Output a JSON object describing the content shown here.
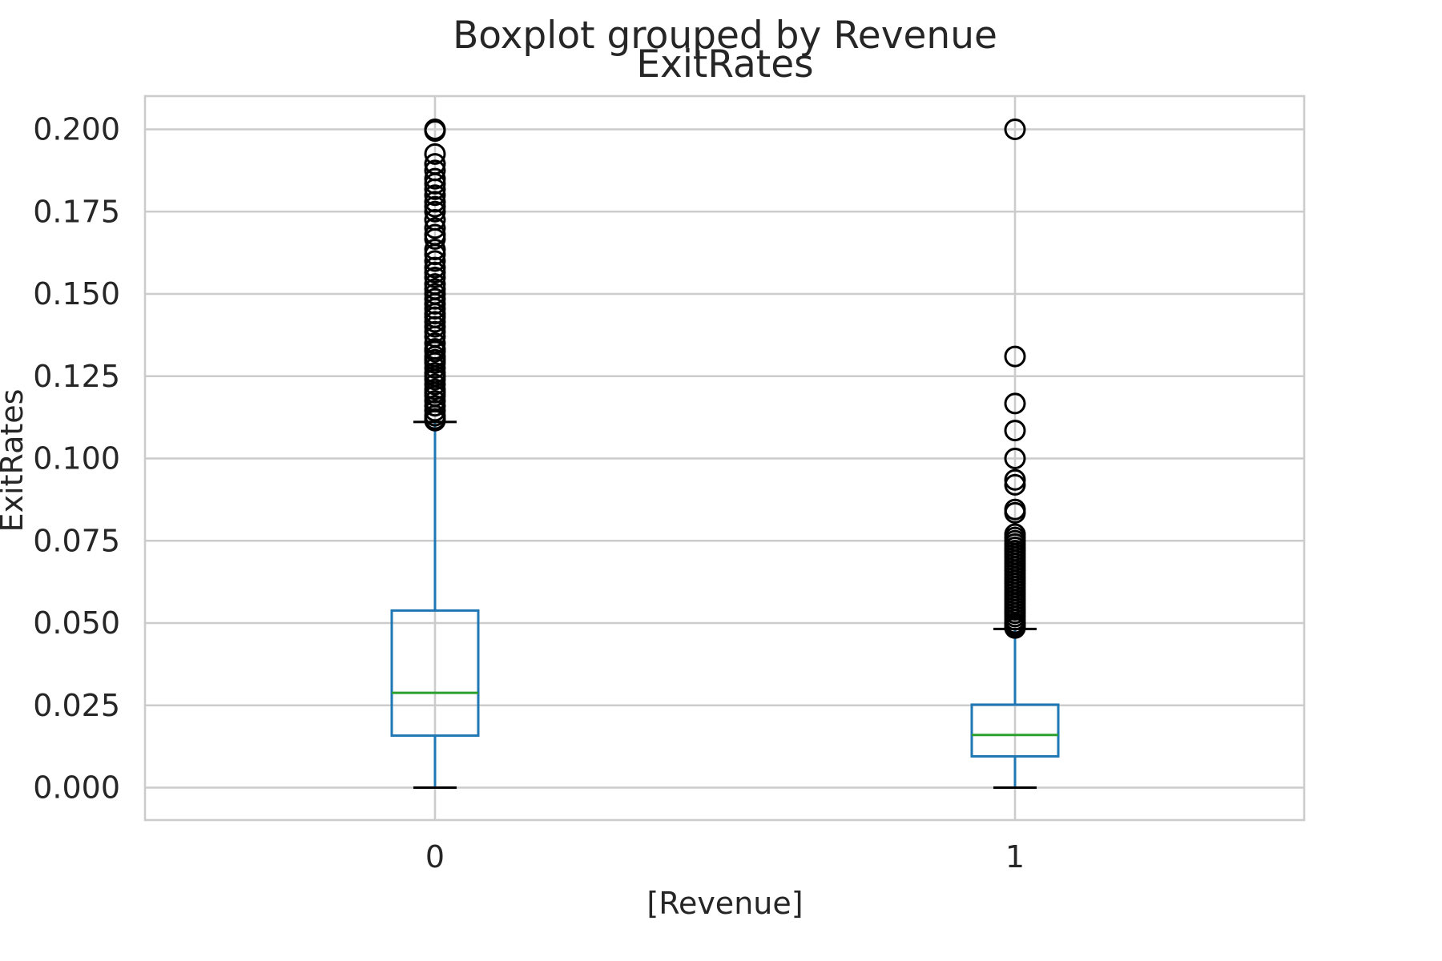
{
  "chart_data": {
    "type": "box",
    "suptitle": "Boxplot grouped by Revenue",
    "title": "ExitRates",
    "xlabel": "[Revenue]",
    "ylabel": "ExitRates",
    "categories": [
      "0",
      "1"
    ],
    "ylim": [
      -0.01,
      0.21
    ],
    "yticks": [
      "0.000",
      "0.025",
      "0.050",
      "0.075",
      "0.100",
      "0.125",
      "0.150",
      "0.175",
      "0.200"
    ],
    "grid": true,
    "colors": {
      "box": "#1f77b4",
      "median": "#2ca02c",
      "whisker_cap": "#000000",
      "flier": "#000000",
      "grid": "#cccccc"
    },
    "boxes": [
      {
        "category": "0",
        "whisker_low": 0.0,
        "q1": 0.0158,
        "median": 0.0288,
        "q3": 0.0538,
        "whisker_high": 0.1111,
        "fliers": [
          0.1115,
          0.112,
          0.113,
          0.1145,
          0.116,
          0.1175,
          0.119,
          0.12,
          0.121,
          0.1225,
          0.124,
          0.125,
          0.126,
          0.1275,
          0.129,
          0.13,
          0.131,
          0.1325,
          0.1333,
          0.135,
          0.137,
          0.1385,
          0.14,
          0.1415,
          0.1429,
          0.144,
          0.1455,
          0.147,
          0.1485,
          0.15,
          0.1515,
          0.153,
          0.155,
          0.1565,
          0.158,
          0.16,
          0.162,
          0.1635,
          0.1667,
          0.168,
          0.17,
          0.1725,
          0.175,
          0.1765,
          0.178,
          0.18,
          0.1818,
          0.1835,
          0.185,
          0.1875,
          0.1895,
          0.1925,
          0.1995,
          0.2
        ]
      },
      {
        "category": "1",
        "whisker_low": 0.0,
        "q1": 0.0095,
        "median": 0.016,
        "q3": 0.0252,
        "whisker_high": 0.0482,
        "fliers": [
          0.0485,
          0.049,
          0.0495,
          0.05,
          0.051,
          0.052,
          0.053,
          0.054,
          0.055,
          0.056,
          0.057,
          0.058,
          0.059,
          0.06,
          0.061,
          0.062,
          0.063,
          0.064,
          0.065,
          0.066,
          0.067,
          0.068,
          0.069,
          0.07,
          0.071,
          0.072,
          0.073,
          0.074,
          0.075,
          0.076,
          0.077,
          0.0835,
          0.0845,
          0.092,
          0.0935,
          0.1,
          0.1085,
          0.1167,
          0.131,
          0.2
        ]
      }
    ]
  }
}
